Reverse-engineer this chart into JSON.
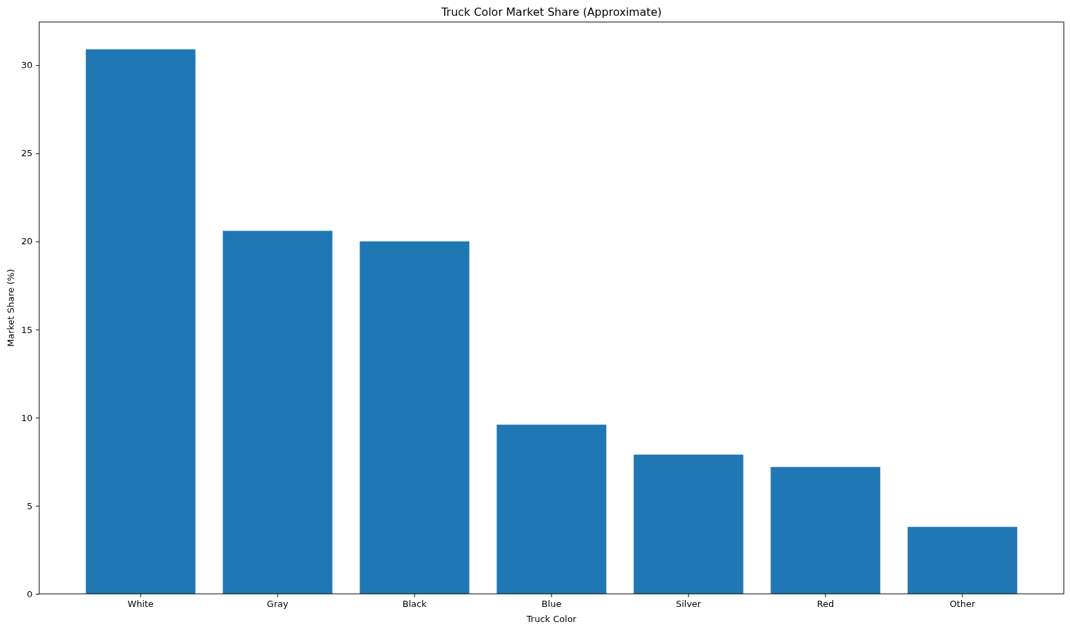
{
  "chart_data": {
    "type": "bar",
    "title": "Truck Color Market Share (Approximate)",
    "xlabel": "Truck Color",
    "ylabel": "Market Share (%)",
    "categories": [
      "White",
      "Gray",
      "Black",
      "Blue",
      "Silver",
      "Red",
      "Other"
    ],
    "values": [
      30.9,
      20.6,
      20.0,
      9.6,
      7.9,
      7.2,
      3.8
    ],
    "color": "#1f77b4",
    "ylim": [
      0,
      32.45
    ],
    "yticks": [
      0,
      5,
      10,
      15,
      20,
      25,
      30
    ]
  }
}
